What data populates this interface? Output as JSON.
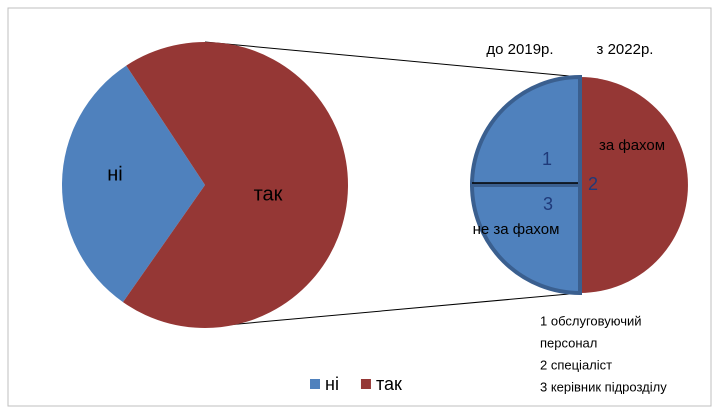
{
  "chart_data": [
    {
      "type": "pie",
      "categories": [
        "ні",
        "так"
      ],
      "values": [
        31,
        69
      ],
      "colors": [
        "#4f81bd",
        "#953735"
      ],
      "legend": "bottom"
    },
    {
      "type": "pie",
      "categories": [
        "2",
        "3",
        "1"
      ],
      "values": [
        50,
        25,
        25
      ],
      "colors": [
        "#953735",
        "#4f81bd",
        "#4f81bd"
      ],
      "annotations": [
        "до 2019р.",
        "з 2022р.",
        "за фахом",
        "не за фахом"
      ],
      "notes": [
        "1 обслуговуючий",
        "персонал",
        "2 спеціаліст",
        "3 керівник підрозділу"
      ]
    }
  ]
}
